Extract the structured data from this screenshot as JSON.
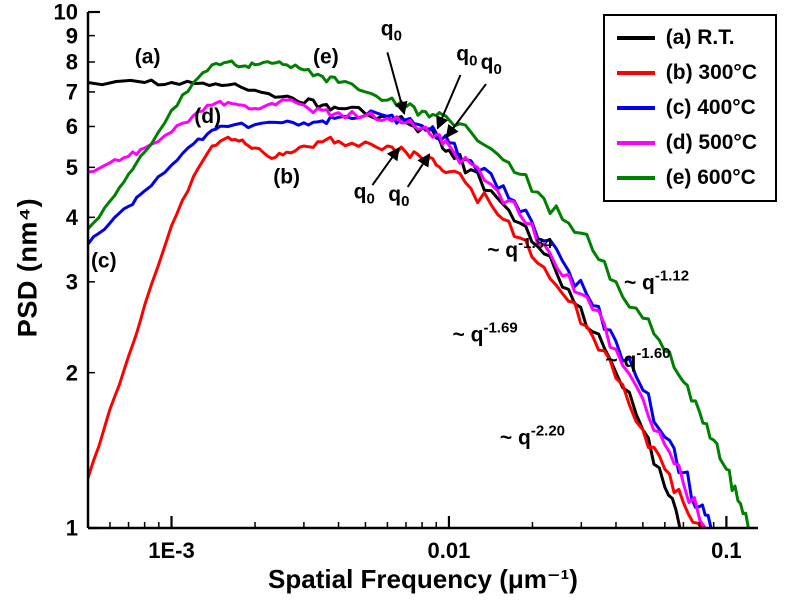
{
  "chart_data": {
    "type": "line",
    "title": "",
    "xlabel": "Spatial Frequency (μm⁻¹)",
    "ylabel": "PSD (nm⁴)",
    "xscale": "log",
    "yscale": "log",
    "xlim": [
      0.0005,
      0.13
    ],
    "ylim": [
      1,
      10
    ],
    "grid": false,
    "x_ticks": [
      {
        "value": 0.001,
        "label": "1E-3"
      },
      {
        "value": 0.01,
        "label": "0.01"
      },
      {
        "value": 0.1,
        "label": "0.1"
      }
    ],
    "y_ticks": [
      1,
      2,
      3,
      4,
      5,
      6,
      7,
      8,
      9,
      10
    ],
    "legend": {
      "position": "top-right",
      "items": [
        {
          "label": "(a) R.T.",
          "color": "#000000"
        },
        {
          "label": "(b) 300°C",
          "color": "#ff0000"
        },
        {
          "label": "(c) 400°C",
          "color": "#0000ee"
        },
        {
          "label": "(d) 500°C",
          "color": "#ff00ff"
        },
        {
          "label": "(e) 600°C",
          "color": "#008000"
        }
      ]
    },
    "series": [
      {
        "id": "a",
        "name": "(a) R.T.",
        "color": "#000000",
        "points": [
          [
            0.0005,
            7.3
          ],
          [
            0.0008,
            7.3
          ],
          [
            0.001,
            7.3
          ],
          [
            0.0013,
            7.28
          ],
          [
            0.0016,
            7.22
          ],
          [
            0.002,
            7.05
          ],
          [
            0.0025,
            6.85
          ],
          [
            0.003,
            6.65
          ],
          [
            0.0035,
            6.6
          ],
          [
            0.004,
            6.5
          ],
          [
            0.005,
            6.35
          ],
          [
            0.006,
            6.25
          ],
          [
            0.007,
            6.1
          ],
          [
            0.008,
            5.95
          ],
          [
            0.009,
            5.7
          ],
          [
            0.01,
            5.4
          ],
          [
            0.012,
            4.95
          ],
          [
            0.015,
            4.35
          ],
          [
            0.018,
            3.9
          ],
          [
            0.022,
            3.4
          ],
          [
            0.027,
            2.9
          ],
          [
            0.033,
            2.4
          ],
          [
            0.04,
            2.0
          ],
          [
            0.05,
            1.55
          ],
          [
            0.06,
            1.2
          ],
          [
            0.068,
            1.0
          ]
        ]
      },
      {
        "id": "b",
        "name": "(b) 300°C",
        "color": "#ff0000",
        "points": [
          [
            0.0005,
            1.25
          ],
          [
            0.0006,
            1.7
          ],
          [
            0.0007,
            2.15
          ],
          [
            0.0008,
            2.7
          ],
          [
            0.001,
            3.85
          ],
          [
            0.0012,
            4.8
          ],
          [
            0.0014,
            5.5
          ],
          [
            0.0016,
            5.72
          ],
          [
            0.0018,
            5.65
          ],
          [
            0.002,
            5.45
          ],
          [
            0.0023,
            5.2
          ],
          [
            0.0026,
            5.35
          ],
          [
            0.003,
            5.5
          ],
          [
            0.0035,
            5.6
          ],
          [
            0.004,
            5.62
          ],
          [
            0.005,
            5.6
          ],
          [
            0.006,
            5.5
          ],
          [
            0.007,
            5.35
          ],
          [
            0.008,
            5.2
          ],
          [
            0.009,
            5.05
          ],
          [
            0.01,
            4.9
          ],
          [
            0.012,
            4.55
          ],
          [
            0.015,
            4.05
          ],
          [
            0.018,
            3.65
          ],
          [
            0.022,
            3.2
          ],
          [
            0.027,
            2.75
          ],
          [
            0.033,
            2.35
          ],
          [
            0.04,
            1.95
          ],
          [
            0.05,
            1.55
          ],
          [
            0.06,
            1.3
          ],
          [
            0.07,
            1.12
          ],
          [
            0.082,
            1.0
          ]
        ]
      },
      {
        "id": "c",
        "name": "(c) 400°C",
        "color": "#0000ee",
        "points": [
          [
            0.0005,
            3.55
          ],
          [
            0.0006,
            3.9
          ],
          [
            0.0007,
            4.2
          ],
          [
            0.0008,
            4.5
          ],
          [
            0.001,
            5.05
          ],
          [
            0.0012,
            5.55
          ],
          [
            0.0014,
            5.9
          ],
          [
            0.0016,
            6.0
          ],
          [
            0.002,
            6.05
          ],
          [
            0.0025,
            6.1
          ],
          [
            0.003,
            6.1
          ],
          [
            0.0035,
            6.15
          ],
          [
            0.004,
            6.25
          ],
          [
            0.005,
            6.3
          ],
          [
            0.006,
            6.28
          ],
          [
            0.007,
            6.18
          ],
          [
            0.008,
            6.02
          ],
          [
            0.009,
            5.82
          ],
          [
            0.01,
            5.58
          ],
          [
            0.012,
            5.15
          ],
          [
            0.015,
            4.55
          ],
          [
            0.018,
            4.1
          ],
          [
            0.022,
            3.6
          ],
          [
            0.027,
            3.15
          ],
          [
            0.033,
            2.7
          ],
          [
            0.04,
            2.3
          ],
          [
            0.05,
            1.85
          ],
          [
            0.06,
            1.5
          ],
          [
            0.07,
            1.28
          ],
          [
            0.08,
            1.1
          ],
          [
            0.088,
            1.0
          ]
        ]
      },
      {
        "id": "d",
        "name": "(d) 500°C",
        "color": "#ff00ff",
        "points": [
          [
            0.0005,
            4.9
          ],
          [
            0.0006,
            5.1
          ],
          [
            0.0007,
            5.25
          ],
          [
            0.0008,
            5.45
          ],
          [
            0.001,
            5.85
          ],
          [
            0.0012,
            6.3
          ],
          [
            0.0014,
            6.6
          ],
          [
            0.0016,
            6.68
          ],
          [
            0.0018,
            6.6
          ],
          [
            0.002,
            6.5
          ],
          [
            0.0023,
            6.65
          ],
          [
            0.0026,
            6.75
          ],
          [
            0.003,
            6.6
          ],
          [
            0.0035,
            6.45
          ],
          [
            0.004,
            6.38
          ],
          [
            0.005,
            6.3
          ],
          [
            0.006,
            6.22
          ],
          [
            0.007,
            6.1
          ],
          [
            0.008,
            5.95
          ],
          [
            0.009,
            5.78
          ],
          [
            0.01,
            5.52
          ],
          [
            0.012,
            5.08
          ],
          [
            0.015,
            4.5
          ],
          [
            0.018,
            4.05
          ],
          [
            0.022,
            3.55
          ],
          [
            0.027,
            3.1
          ],
          [
            0.033,
            2.65
          ],
          [
            0.04,
            2.22
          ],
          [
            0.05,
            1.78
          ],
          [
            0.06,
            1.45
          ],
          [
            0.07,
            1.22
          ],
          [
            0.084,
            1.0
          ]
        ]
      },
      {
        "id": "e",
        "name": "(e) 600°C",
        "color": "#008000",
        "points": [
          [
            0.0005,
            3.8
          ],
          [
            0.0006,
            4.3
          ],
          [
            0.0007,
            4.85
          ],
          [
            0.0008,
            5.35
          ],
          [
            0.001,
            6.45
          ],
          [
            0.0012,
            7.3
          ],
          [
            0.0014,
            7.9
          ],
          [
            0.0016,
            8.0
          ],
          [
            0.0018,
            7.85
          ],
          [
            0.002,
            7.9
          ],
          [
            0.0023,
            7.95
          ],
          [
            0.0026,
            7.9
          ],
          [
            0.003,
            7.72
          ],
          [
            0.0035,
            7.5
          ],
          [
            0.004,
            7.3
          ],
          [
            0.005,
            7.0
          ],
          [
            0.006,
            6.75
          ],
          [
            0.007,
            6.55
          ],
          [
            0.008,
            6.42
          ],
          [
            0.009,
            6.3
          ],
          [
            0.01,
            6.18
          ],
          [
            0.012,
            5.85
          ],
          [
            0.015,
            5.3
          ],
          [
            0.018,
            4.85
          ],
          [
            0.022,
            4.35
          ],
          [
            0.027,
            3.9
          ],
          [
            0.033,
            3.45
          ],
          [
            0.04,
            3.0
          ],
          [
            0.05,
            2.55
          ],
          [
            0.06,
            2.2
          ],
          [
            0.07,
            1.92
          ],
          [
            0.08,
            1.68
          ],
          [
            0.09,
            1.48
          ],
          [
            0.1,
            1.3
          ],
          [
            0.11,
            1.13
          ],
          [
            0.12,
            1.0
          ]
        ]
      }
    ],
    "annotations": {
      "curve_labels": [
        {
          "text": "(a)",
          "x": 0.00082,
          "y": 7.95
        },
        {
          "text": "(b)",
          "x": 0.0026,
          "y": 4.65
        },
        {
          "text": "(c)",
          "x": 0.00057,
          "y": 3.2
        },
        {
          "text": "(d)",
          "x": 0.00135,
          "y": 6.1
        },
        {
          "text": "(e)",
          "x": 0.0036,
          "y": 7.95
        }
      ],
      "q0_labels": [
        {
          "base": "q",
          "sub": "0",
          "x": 0.0062,
          "y": 9.0,
          "arrow": {
            "x1": 0.006,
            "y1": 8.35,
            "x2": 0.0069,
            "y2": 6.35
          }
        },
        {
          "base": "q",
          "sub": "0",
          "x": 0.0116,
          "y": 8.05,
          "arrow": {
            "x1": 0.011,
            "y1": 7.55,
            "x2": 0.0091,
            "y2": 5.95
          }
        },
        {
          "base": "q",
          "sub": "0",
          "x": 0.0142,
          "y": 7.75,
          "arrow": {
            "x1": 0.0136,
            "y1": 7.25,
            "x2": 0.0098,
            "y2": 5.72
          }
        },
        {
          "base": "q",
          "sub": "0",
          "x": 0.00495,
          "y": 4.35,
          "arrow": {
            "x1": 0.0053,
            "y1": 4.62,
            "x2": 0.0066,
            "y2": 5.45
          }
        },
        {
          "base": "q",
          "sub": "0",
          "x": 0.0066,
          "y": 4.3,
          "arrow": {
            "x1": 0.0071,
            "y1": 4.58,
            "x2": 0.0085,
            "y2": 5.3
          }
        }
      ],
      "slope_labels": [
        {
          "prefix": "~ q",
          "exp": "-1.84",
          "x": 0.018,
          "y": 3.35
        },
        {
          "prefix": "~ q",
          "exp": "-1.12",
          "x": 0.056,
          "y": 2.9
        },
        {
          "prefix": "~ q",
          "exp": "-1.69",
          "x": 0.0135,
          "y": 2.3
        },
        {
          "prefix": "~ q",
          "exp": "-1.60",
          "x": 0.048,
          "y": 2.05
        },
        {
          "prefix": "~ q",
          "exp": "-2.20",
          "x": 0.02,
          "y": 1.45
        }
      ]
    }
  }
}
